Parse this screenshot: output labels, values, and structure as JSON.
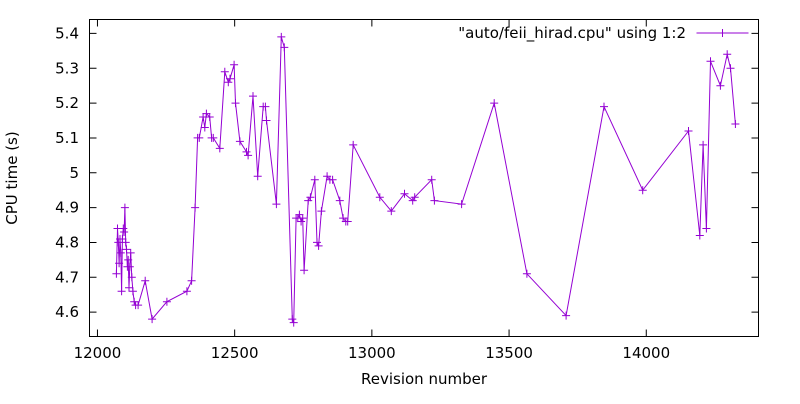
{
  "chart_data": {
    "type": "line",
    "title": "",
    "xlabel": "Revision number",
    "ylabel": "CPU time (s)",
    "legend": {
      "label": "\"auto/feii_hirad.cpu\" using 1:2",
      "position": "top-right"
    },
    "line_color": "#9400d3",
    "border_color": "#000000",
    "background_color": "#ffffff",
    "marker": "plus",
    "grid": false,
    "x_ticks": [
      12000,
      12500,
      13000,
      13500,
      14000
    ],
    "y_ticks": [
      4.6,
      4.7,
      4.8,
      4.9,
      5,
      5.1,
      5.2,
      5.3,
      5.4
    ],
    "xlim": [
      11971,
      14409
    ],
    "ylim": [
      4.53,
      5.44
    ],
    "series": [
      {
        "name": "\"auto/feii_hirad.cpu\" using 1:2",
        "points": [
          [
            12069,
            4.71
          ],
          [
            12073,
            4.84
          ],
          [
            12076,
            4.8
          ],
          [
            12079,
            4.74
          ],
          [
            12082,
            4.81
          ],
          [
            12085,
            4.77
          ],
          [
            12088,
            4.66
          ],
          [
            12091,
            4.81
          ],
          [
            12094,
            4.84
          ],
          [
            12097,
            4.83
          ],
          [
            12100,
            4.9
          ],
          [
            12103,
            4.8
          ],
          [
            12106,
            4.78
          ],
          [
            12109,
            4.73
          ],
          [
            12112,
            4.75
          ],
          [
            12115,
            4.67
          ],
          [
            12118,
            4.73
          ],
          [
            12121,
            4.77
          ],
          [
            12125,
            4.7
          ],
          [
            12129,
            4.66
          ],
          [
            12134,
            4.63
          ],
          [
            12139,
            4.62
          ],
          [
            12148,
            4.62
          ],
          [
            12174,
            4.69
          ],
          [
            12199,
            4.58
          ],
          [
            12253,
            4.63
          ],
          [
            12326,
            4.66
          ],
          [
            12343,
            4.69
          ],
          [
            12356,
            4.9
          ],
          [
            12365,
            5.1
          ],
          [
            12371,
            5.1
          ],
          [
            12385,
            5.16
          ],
          [
            12391,
            5.13
          ],
          [
            12397,
            5.17
          ],
          [
            12409,
            5.16
          ],
          [
            12416,
            5.1
          ],
          [
            12422,
            5.1
          ],
          [
            12446,
            5.07
          ],
          [
            12464,
            5.29
          ],
          [
            12477,
            5.26
          ],
          [
            12483,
            5.27
          ],
          [
            12498,
            5.31
          ],
          [
            12503,
            5.2
          ],
          [
            12519,
            5.09
          ],
          [
            12543,
            5.06
          ],
          [
            12549,
            5.05
          ],
          [
            12567,
            5.22
          ],
          [
            12584,
            4.99
          ],
          [
            12604,
            5.19
          ],
          [
            12612,
            5.19
          ],
          [
            12616,
            5.15
          ],
          [
            12652,
            4.91
          ],
          [
            12670,
            5.39
          ],
          [
            12681,
            5.36
          ],
          [
            12710,
            4.58
          ],
          [
            12715,
            4.57
          ],
          [
            12724,
            4.87
          ],
          [
            12730,
            4.87
          ],
          [
            12736,
            4.88
          ],
          [
            12742,
            4.86
          ],
          [
            12748,
            4.87
          ],
          [
            12753,
            4.72
          ],
          [
            12768,
            4.92
          ],
          [
            12776,
            4.93
          ],
          [
            12792,
            4.98
          ],
          [
            12800,
            4.8
          ],
          [
            12806,
            4.79
          ],
          [
            12816,
            4.89
          ],
          [
            12837,
            4.99
          ],
          [
            12847,
            4.98
          ],
          [
            12857,
            4.98
          ],
          [
            12883,
            4.92
          ],
          [
            12895,
            4.87
          ],
          [
            12905,
            4.86
          ],
          [
            12912,
            4.86
          ],
          [
            12932,
            5.08
          ],
          [
            13029,
            4.93
          ],
          [
            13071,
            4.89
          ],
          [
            13119,
            4.94
          ],
          [
            13149,
            4.92
          ],
          [
            13156,
            4.93
          ],
          [
            13218,
            4.98
          ],
          [
            13228,
            4.92
          ],
          [
            13327,
            4.91
          ],
          [
            13446,
            5.2
          ],
          [
            13565,
            4.71
          ],
          [
            13708,
            4.59
          ],
          [
            13846,
            5.19
          ],
          [
            13987,
            4.95
          ],
          [
            14154,
            5.12
          ],
          [
            14195,
            4.82
          ],
          [
            14207,
            5.08
          ],
          [
            14219,
            4.84
          ],
          [
            14234,
            5.32
          ],
          [
            14270,
            5.25
          ],
          [
            14295,
            5.34
          ],
          [
            14307,
            5.3
          ],
          [
            14325,
            5.14
          ]
        ]
      }
    ]
  }
}
